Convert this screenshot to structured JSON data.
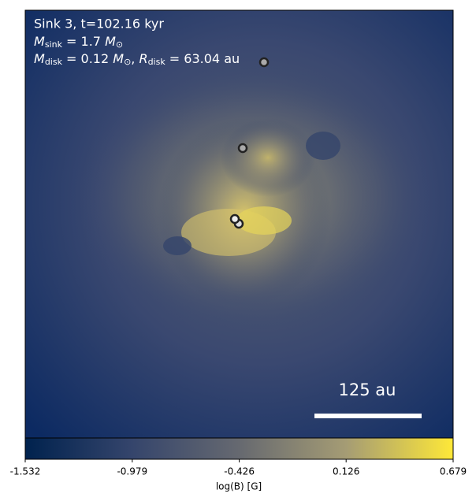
{
  "chart_data": {
    "type": "image",
    "annotations": [
      [
        "Sink 3, t=102.16 kyr"
      ],
      [
        "M",
        "sink",
        " = 1.7 ",
        "M",
        "⊙"
      ],
      [
        "M",
        "disk",
        " = 0.12 ",
        "M",
        "⊙",
        ", ",
        "R",
        "disk",
        " = 63.04 au"
      ]
    ],
    "scale_bar_label": "125 au",
    "colorbar_label": "log(B) [G]",
    "clim": [
      -1.532,
      0.679
    ],
    "cticks": [
      -1.532,
      -0.979,
      -0.426,
      0.126,
      0.679
    ]
  }
}
